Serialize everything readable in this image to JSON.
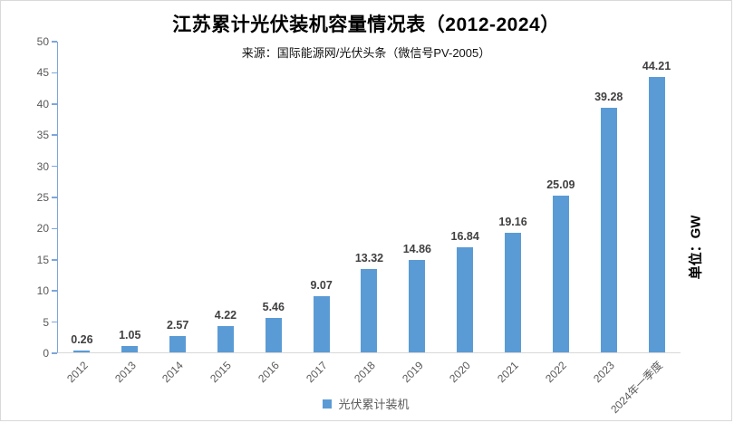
{
  "header": {
    "title": "江苏累计光伏装机容量情况表（2012-2024）",
    "subtitle": "来源：国际能源网/光伏头条（微信号PV-2005）"
  },
  "chart_data": {
    "type": "bar",
    "title": "江苏累计光伏装机容量情况表（2012-2024）",
    "subtitle": "来源：国际能源网/光伏头条（微信号PV-2005）",
    "categories": [
      "2012",
      "2013",
      "2014",
      "2015",
      "2016",
      "2017",
      "2018",
      "2019",
      "2020",
      "2021",
      "2022",
      "2023",
      "2024年一季度"
    ],
    "series": [
      {
        "name": "光伏累计装机",
        "values": [
          0.26,
          1.05,
          2.57,
          4.22,
          5.46,
          9.07,
          13.32,
          14.86,
          16.84,
          19.16,
          25.09,
          39.28,
          44.21
        ]
      }
    ],
    "data_labels_visible": true,
    "xlabel": "",
    "ylabel": "单位：GW",
    "ylim": [
      0,
      50
    ],
    "ytick_step": 5,
    "yticks": [
      0,
      5,
      10,
      15,
      20,
      25,
      30,
      35,
      40,
      45,
      50
    ],
    "grid": false,
    "legend_position": "bottom",
    "bar_color": "#5b9bd5"
  },
  "legend": {
    "items": [
      {
        "label": "光伏累计装机",
        "color": "#5b9bd5"
      }
    ]
  },
  "axis": {
    "unit_label": "单位：GW",
    "y_axis_color": "#7ea6d9",
    "x_axis_color": "#d9d9d9",
    "tick_label_color": "#595959",
    "data_label_color": "#404040"
  }
}
